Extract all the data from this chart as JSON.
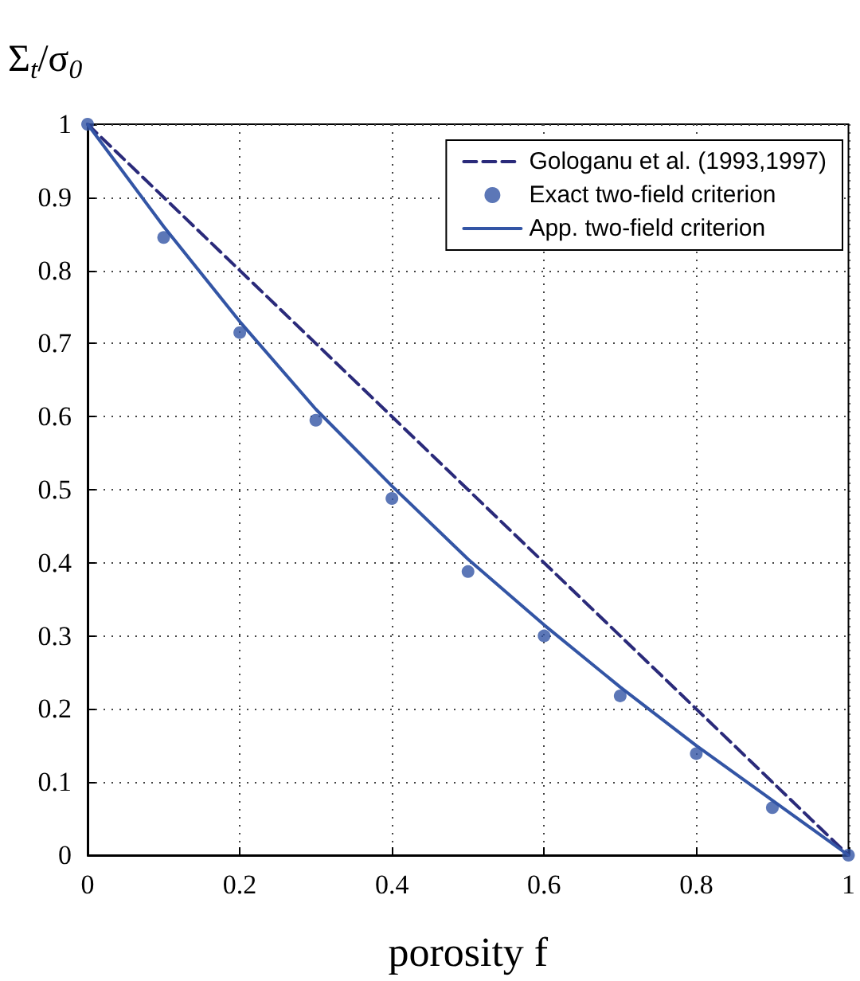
{
  "chart_data": {
    "type": "line",
    "ylabel": "Σ$_{t}$/σ$_{0}$",
    "xlabel": "porosity f",
    "xlim": [
      0,
      1
    ],
    "xticks": [
      0,
      0.2,
      0.4,
      0.6,
      0.8,
      1
    ],
    "ylim": [
      0,
      1
    ],
    "yticks": [
      0,
      0.1,
      0.2,
      0.3,
      0.4,
      0.5,
      0.6,
      0.7,
      0.8,
      0.9,
      1
    ],
    "grid": true,
    "legend": "top right",
    "series": [
      {
        "name": "Gologanu et al. (1993,1997)",
        "color": "#2a2a7a",
        "line_style": "dashed",
        "marker": "none",
        "x": [
          0,
          1
        ],
        "values": [
          1,
          0
        ]
      },
      {
        "name": "Exact two-field criterion",
        "type": "scatter",
        "color": "#3355a5",
        "marker": "circle",
        "x": [
          0,
          0.1,
          0.2,
          0.3,
          0.4,
          0.5,
          0.6,
          0.7,
          0.8,
          0.9,
          1
        ],
        "values": [
          1,
          0.845,
          0.715,
          0.595,
          0.488,
          0.388,
          0.3,
          0.218,
          0.139,
          0.065,
          0
        ]
      },
      {
        "name": "App. two-field criterion",
        "color": "#3355a5",
        "line_style": "solid",
        "marker": "none",
        "x": [
          0,
          0.1,
          0.2,
          0.3,
          0.4,
          0.5,
          0.6,
          0.7,
          0.8,
          0.9,
          1
        ],
        "values": [
          1,
          0.86,
          0.73,
          0.61,
          0.505,
          0.405,
          0.315,
          0.23,
          0.15,
          0.075,
          0
        ]
      }
    ]
  }
}
